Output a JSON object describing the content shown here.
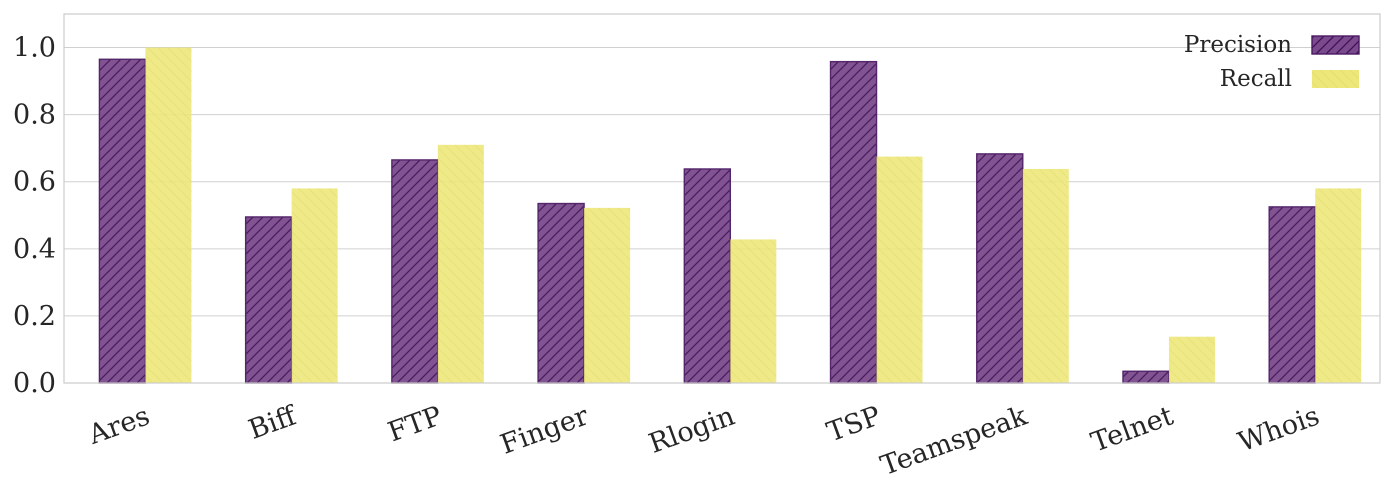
{
  "chart_data": {
    "type": "bar",
    "categories": [
      "Ares",
      "Biff",
      "FTP",
      "Finger",
      "Rlogin",
      "TSP",
      "Teamspeak",
      "Telnet",
      "Whois"
    ],
    "series": [
      {
        "name": "Precision",
        "values": [
          0.965,
          0.495,
          0.665,
          0.535,
          0.638,
          0.958,
          0.683,
          0.035,
          0.525
        ],
        "color": "#3f0f5a",
        "hatch": "diagonal"
      },
      {
        "name": "Recall",
        "values": [
          1.0,
          0.58,
          0.71,
          0.522,
          0.428,
          0.675,
          0.638,
          0.138,
          0.58
        ],
        "color": "#e8e54a",
        "hatch": "faint-diagonal"
      }
    ],
    "yticks": [
      "0.0",
      "0.2",
      "0.4",
      "0.6",
      "0.8",
      "1.0"
    ],
    "ylim": [
      0,
      1.1
    ],
    "grid": true,
    "legend_position": "top-right",
    "xlabel": "",
    "ylabel": ""
  }
}
